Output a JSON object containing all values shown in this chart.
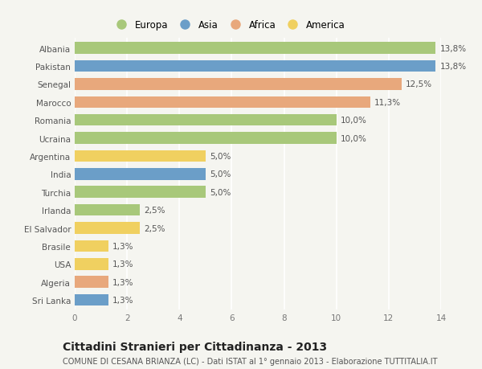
{
  "countries": [
    "Albania",
    "Pakistan",
    "Senegal",
    "Marocco",
    "Romania",
    "Ucraina",
    "Argentina",
    "India",
    "Turchia",
    "Irlanda",
    "El Salvador",
    "Brasile",
    "USA",
    "Algeria",
    "Sri Lanka"
  ],
  "values": [
    13.8,
    13.8,
    12.5,
    11.3,
    10.0,
    10.0,
    5.0,
    5.0,
    5.0,
    2.5,
    2.5,
    1.3,
    1.3,
    1.3,
    1.3
  ],
  "labels": [
    "13,8%",
    "13,8%",
    "12,5%",
    "11,3%",
    "10,0%",
    "10,0%",
    "5,0%",
    "5,0%",
    "5,0%",
    "2,5%",
    "2,5%",
    "1,3%",
    "1,3%",
    "1,3%",
    "1,3%"
  ],
  "continents": [
    "Europa",
    "Asia",
    "Africa",
    "Africa",
    "Europa",
    "Europa",
    "America",
    "Asia",
    "Europa",
    "Europa",
    "America",
    "America",
    "America",
    "Africa",
    "Asia"
  ],
  "continent_colors": {
    "Europa": "#a8c87a",
    "Asia": "#6b9ec8",
    "Africa": "#e8a87c",
    "America": "#f0d060"
  },
  "legend_order": [
    "Europa",
    "Asia",
    "Africa",
    "America"
  ],
  "xlim": [
    0,
    14
  ],
  "xticks": [
    0,
    2,
    4,
    6,
    8,
    10,
    12,
    14
  ],
  "title": "Cittadini Stranieri per Cittadinanza - 2013",
  "subtitle": "COMUNE DI CESANA BRIANZA (LC) - Dati ISTAT al 1° gennaio 2013 - Elaborazione TUTTITALIA.IT",
  "background_color": "#f5f5f0",
  "grid_color": "#ffffff",
  "bar_height": 0.65,
  "title_fontsize": 10,
  "subtitle_fontsize": 7,
  "label_fontsize": 7.5,
  "tick_fontsize": 7.5,
  "legend_fontsize": 8.5
}
